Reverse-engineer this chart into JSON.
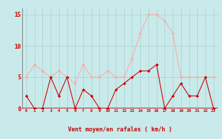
{
  "x": [
    0,
    1,
    2,
    3,
    4,
    5,
    6,
    7,
    8,
    9,
    10,
    11,
    12,
    13,
    14,
    15,
    16,
    17,
    18,
    19,
    20,
    21,
    22,
    23
  ],
  "wind_avg": [
    2,
    0,
    0,
    5,
    2,
    5,
    0,
    3,
    2,
    0,
    0,
    3,
    4,
    5,
    6,
    6,
    7,
    0,
    2,
    4,
    2,
    2,
    5,
    0
  ],
  "wind_gust": [
    5,
    7,
    6,
    5,
    6,
    5,
    4,
    7,
    5,
    5,
    6,
    5,
    5,
    8,
    12,
    15,
    15,
    14,
    12,
    5,
    5,
    5,
    5,
    5
  ],
  "line_avg_color": "#cc0000",
  "line_gust_color": "#ffaaaa",
  "background_color": "#c8eaea",
  "grid_color": "#aacccc",
  "text_color": "#cc0000",
  "xlabel": "Vent moyen/en rafales ( km/h )",
  "ylim": [
    0,
    16
  ],
  "yticks": [
    0,
    5,
    10,
    15
  ],
  "xlim": [
    -0.5,
    23.5
  ],
  "bottom_bar_color": "#cc0000",
  "left_spine_color": "#888888"
}
